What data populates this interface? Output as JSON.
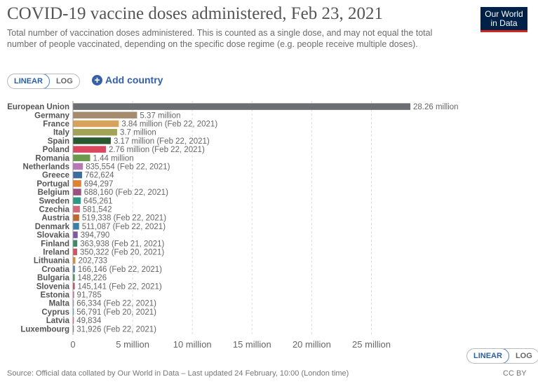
{
  "header": {
    "title": "COVID-19 vaccine doses administered, Feb 23, 2021",
    "subtitle": "Total number of vaccination doses administered. This is counted as a single dose, and may not equal the total number of people vaccinated, depending on the specific dose regime (e.g. people receive multiple doses).",
    "logo_line1": "Our World",
    "logo_line2": "in Data"
  },
  "controls": {
    "linear_label": "LINEAR",
    "log_label": "LOG",
    "add_country_label": "Add country"
  },
  "footer": {
    "source": "Source: Official data collated by Our World in Data – Last updated 24 February, 10:00 (London time)",
    "license": "CC BY"
  },
  "chart_data": {
    "type": "bar",
    "orientation": "horizontal",
    "xlim": [
      0,
      28260000
    ],
    "x_ticks": [
      0,
      5000000,
      10000000,
      15000000,
      20000000,
      25000000
    ],
    "x_tick_labels": [
      "0",
      "5 million",
      "10 million",
      "15 million",
      "20 million",
      "25 million"
    ],
    "grid": "vertical dashed",
    "bars": [
      {
        "label": "European Union",
        "value": 28260000,
        "value_label": "28.26 million",
        "color": "#6d6e71"
      },
      {
        "label": "Germany",
        "value": 5370000,
        "value_label": "5.37 million",
        "color": "#a58c6f"
      },
      {
        "label": "France",
        "value": 3840000,
        "value_label": "3.84 million (Feb 22, 2021)",
        "color": "#d6a25c"
      },
      {
        "label": "Italy",
        "value": 3700000,
        "value_label": "3.7 million",
        "color": "#a3a357"
      },
      {
        "label": "Spain",
        "value": 3170000,
        "value_label": "3.17 million (Feb 22, 2021)",
        "color": "#29572f"
      },
      {
        "label": "Poland",
        "value": 2760000,
        "value_label": "2.76 million (Feb 22, 2021)",
        "color": "#d94761"
      },
      {
        "label": "Romania",
        "value": 1440000,
        "value_label": "1.44 million",
        "color": "#6a9a4a"
      },
      {
        "label": "Netherlands",
        "value": 835554,
        "value_label": "835,554 (Feb 22, 2021)",
        "color": "#b877b5"
      },
      {
        "label": "Greece",
        "value": 762624,
        "value_label": "762,624",
        "color": "#3e6d9c"
      },
      {
        "label": "Portugal",
        "value": 694297,
        "value_label": "694,297",
        "color": "#e0822d"
      },
      {
        "label": "Belgium",
        "value": 688160,
        "value_label": "688,160 (Feb 22, 2021)",
        "color": "#9a4f80"
      },
      {
        "label": "Sweden",
        "value": 645261,
        "value_label": "645,261",
        "color": "#2a9a84"
      },
      {
        "label": "Czechia",
        "value": 581542,
        "value_label": "581,542",
        "color": "#d46a79"
      },
      {
        "label": "Austria",
        "value": 519338,
        "value_label": "519,338 (Feb 22, 2021)",
        "color": "#c0692e"
      },
      {
        "label": "Denmark",
        "value": 511087,
        "value_label": "511,087 (Feb 22, 2021)",
        "color": "#3a7fa8"
      },
      {
        "label": "Slovakia",
        "value": 394790,
        "value_label": "394,790",
        "color": "#7a5aa5"
      },
      {
        "label": "Finland",
        "value": 363938,
        "value_label": "363,938 (Feb 21, 2021)",
        "color": "#3b8a6c"
      },
      {
        "label": "Ireland",
        "value": 350322,
        "value_label": "350,322 (Feb 20, 2021)",
        "color": "#cf5464"
      },
      {
        "label": "Lithuania",
        "value": 202733,
        "value_label": "202,733",
        "color": "#d88d3a"
      },
      {
        "label": "Croatia",
        "value": 166146,
        "value_label": "166,146 (Feb 22, 2021)",
        "color": "#5b7fb0"
      },
      {
        "label": "Bulgaria",
        "value": 148226,
        "value_label": "148,226",
        "color": "#3d8f60"
      },
      {
        "label": "Slovenia",
        "value": 145141,
        "value_label": "145,141 (Feb 22, 2021)",
        "color": "#b8465a"
      },
      {
        "label": "Estonia",
        "value": 91785,
        "value_label": "91,785",
        "color": "#c35b8e"
      },
      {
        "label": "Malta",
        "value": 66334,
        "value_label": "66,334 (Feb 22, 2021)",
        "color": "#a67ab8"
      },
      {
        "label": "Cyprus",
        "value": 56791,
        "value_label": "56,791 (Feb 20, 2021)",
        "color": "#4a8fc0"
      },
      {
        "label": "Latvia",
        "value": 49834,
        "value_label": "49,834",
        "color": "#c94f5a"
      },
      {
        "label": "Luxembourg",
        "value": 31926,
        "value_label": "31,926 (Feb 22, 2021)",
        "color": "#6a6a8a"
      }
    ]
  }
}
